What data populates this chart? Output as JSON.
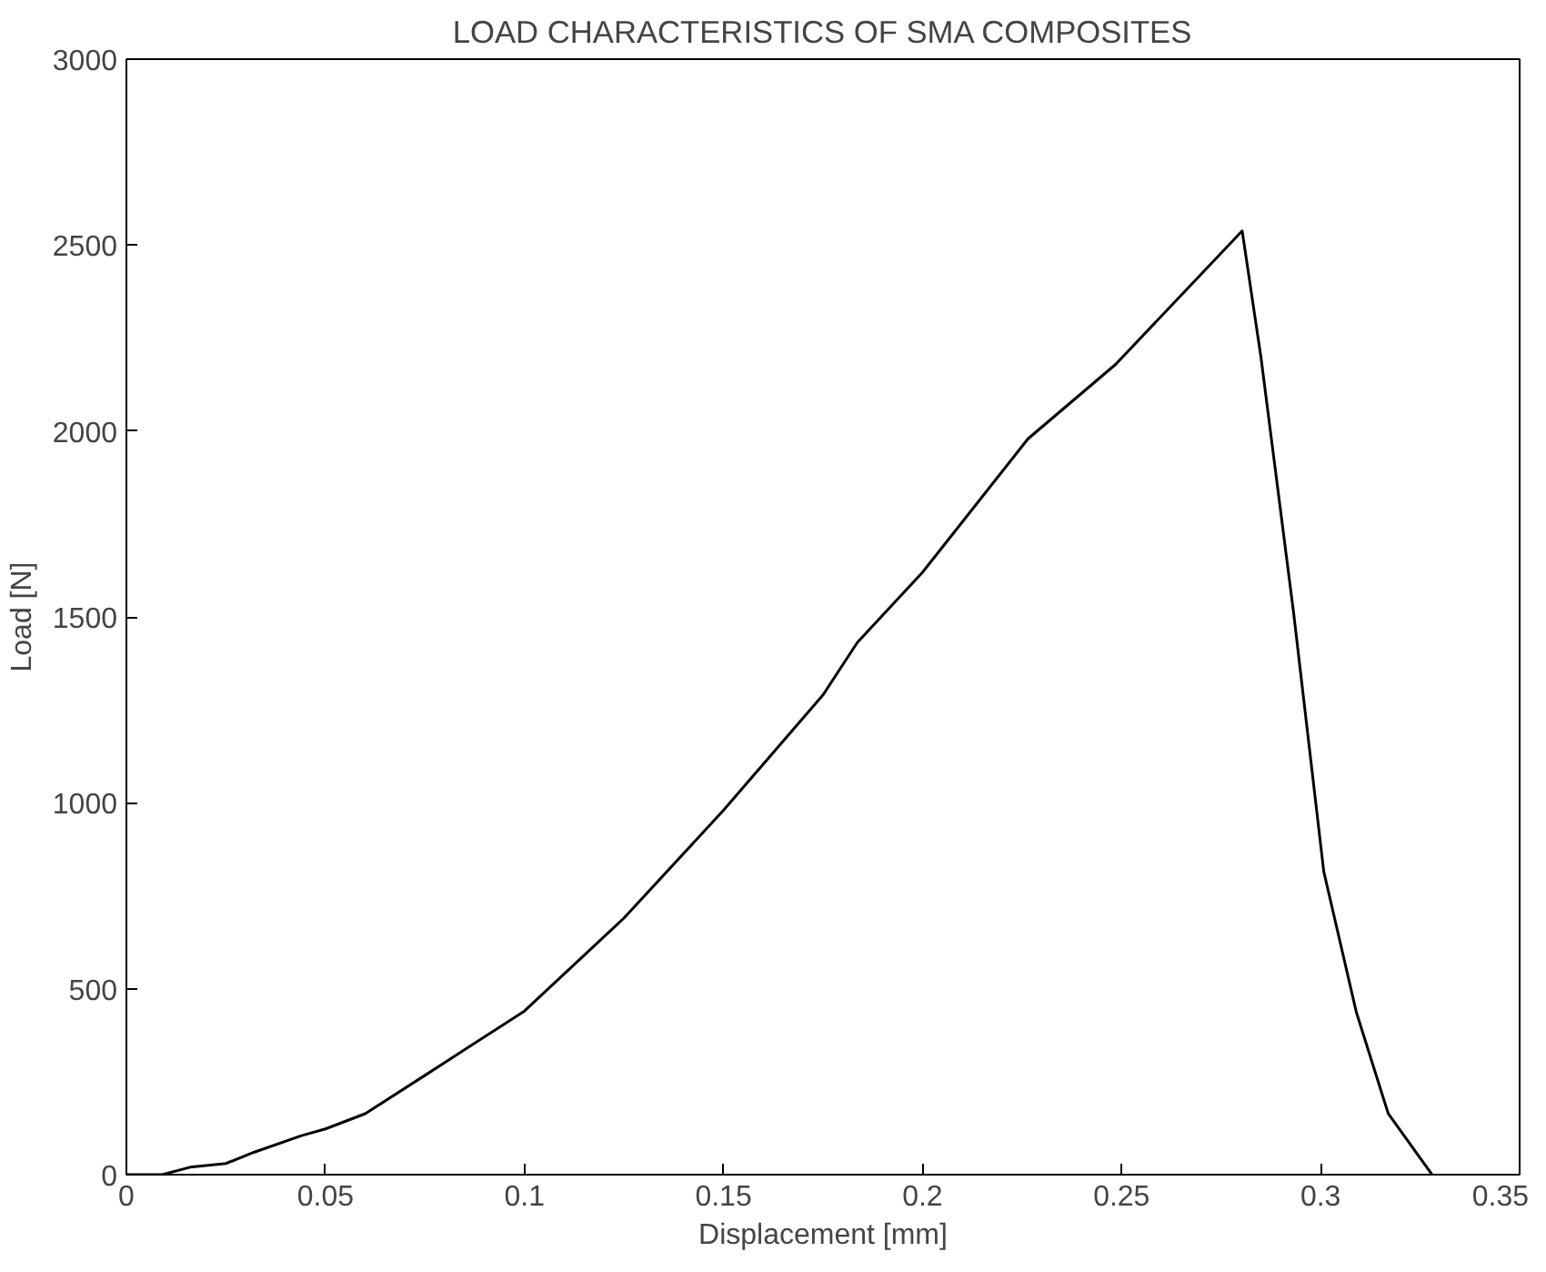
{
  "chart_data": {
    "type": "line",
    "title": "LOAD CHARACTERISTICS OF SMA COMPOSITES",
    "xlabel": "Displacement [mm]",
    "ylabel": "Load [N]",
    "x": [
      0,
      0.009,
      0.016,
      0.025,
      0.032,
      0.044,
      0.05,
      0.06,
      0.075,
      0.1,
      0.125,
      0.15,
      0.175,
      0.1836,
      0.2,
      0.2265,
      0.2485,
      0.2803,
      0.285,
      0.2932,
      0.3008,
      0.309,
      0.317,
      0.328
    ],
    "series": [
      {
        "color": "#000000",
        "values": [
          0,
          0,
          20,
          30,
          60,
          105,
          123,
          164,
          267,
          440,
          690,
          980,
          1290,
          1431,
          1620,
          1979,
          2179,
          2538,
          2200,
          1513,
          815,
          436,
          164,
          0
        ]
      }
    ],
    "xlim": [
      0,
      0.35
    ],
    "ylim": [
      0,
      3000
    ],
    "xticks": [
      0,
      0.05,
      0.1,
      0.15,
      0.2,
      0.25,
      0.3,
      0.35
    ],
    "yticks": [
      0,
      500,
      1000,
      1500,
      2000,
      2500,
      3000
    ],
    "grid": false,
    "marker": "none",
    "line_style": "solid"
  }
}
